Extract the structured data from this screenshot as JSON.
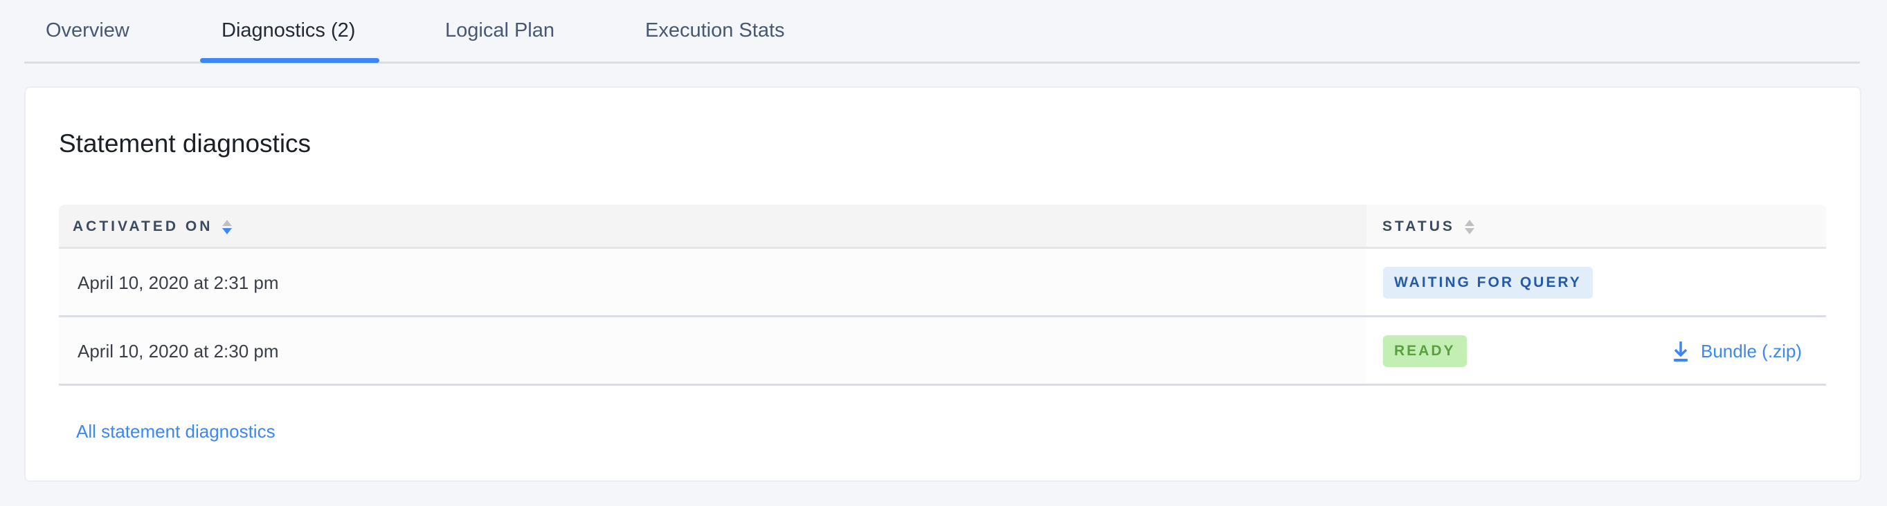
{
  "tabs": [
    {
      "label": "Overview",
      "active": false
    },
    {
      "label": "Diagnostics (2)",
      "active": true
    },
    {
      "label": "Logical Plan",
      "active": false
    },
    {
      "label": "Execution Stats",
      "active": false
    }
  ],
  "card": {
    "title": "Statement diagnostics",
    "columns": [
      {
        "label": "ACTIVATED ON",
        "sort": "descending"
      },
      {
        "label": "STATUS",
        "sort": "none"
      }
    ],
    "rows": [
      {
        "activated_on": "April 10, 2020 at 2:31 pm",
        "status": "WAITING FOR QUERY",
        "action": ""
      },
      {
        "activated_on": "April 10, 2020 at 2:30 pm",
        "status": "READY",
        "action": "Bundle (.zip)"
      }
    ],
    "footer_link": "All statement diagnostics"
  },
  "colors": {
    "accent": "#3b87f5",
    "waiting_bg": "#e1edf9",
    "waiting_text": "#245ba8",
    "ready_bg": "#c4efb4",
    "ready_text": "#5aa041"
  },
  "icons": {
    "sort": "sort-caret-icon",
    "download": "download-icon"
  }
}
